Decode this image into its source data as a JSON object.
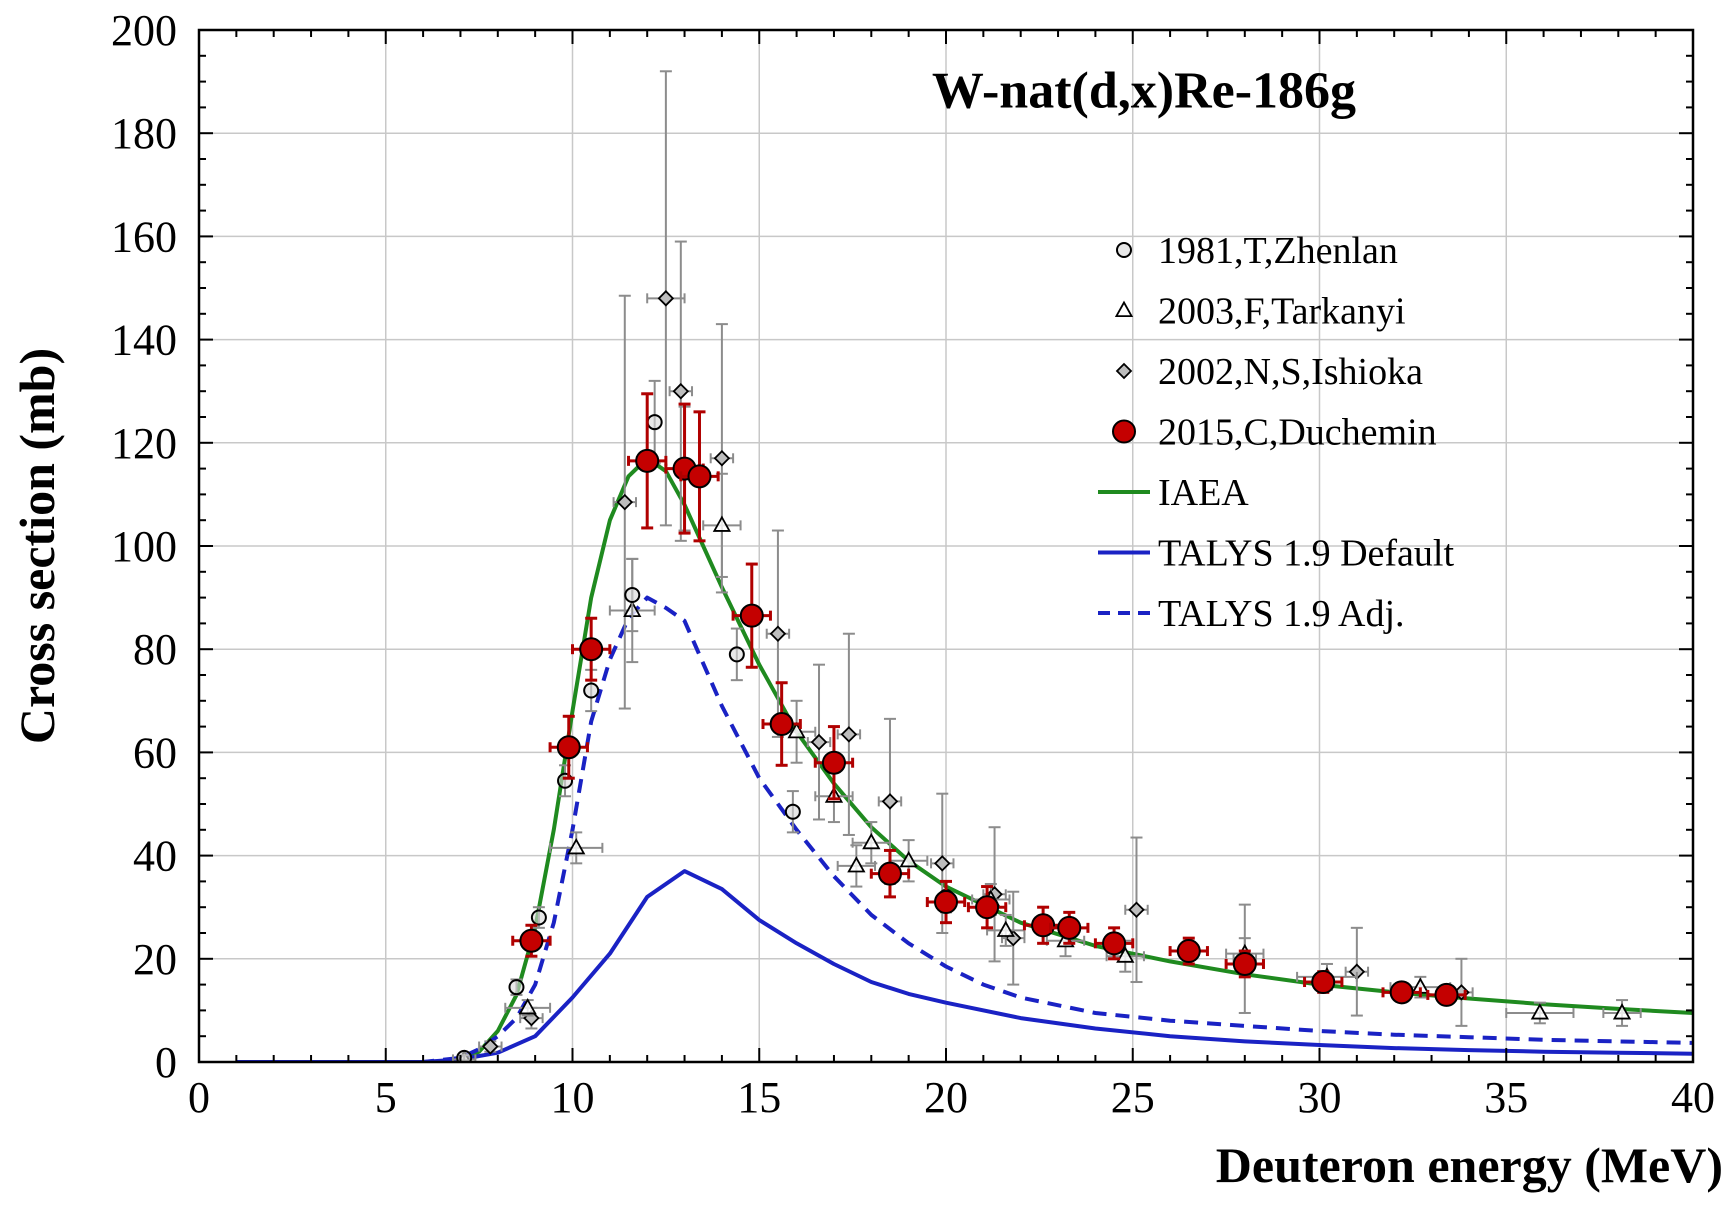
{
  "chart_data": {
    "type": "scatter",
    "title": "W-nat(d,x)Re-186g",
    "xlabel": "Deuteron energy (MeV)",
    "ylabel": "Cross section (mb)",
    "xlim": [
      0,
      40
    ],
    "ylim": [
      0,
      200
    ],
    "xticks": [
      0,
      5,
      10,
      15,
      20,
      25,
      30,
      35,
      40
    ],
    "yticks": [
      0,
      20,
      40,
      60,
      80,
      100,
      120,
      140,
      160,
      180,
      200
    ],
    "grid": true,
    "legend_position": "top-right",
    "series": [
      {
        "name": "1981,T,Zhenlan",
        "kind": "markers",
        "marker": "circle-open",
        "color": "#000000",
        "points": [
          {
            "x": 7.1,
            "y": 0.8,
            "yerr": 0.5,
            "xerr": 0
          },
          {
            "x": 8.5,
            "y": 14.5,
            "yerr": 1.5,
            "xerr": 0
          },
          {
            "x": 9.1,
            "y": 28.0,
            "yerr": 2.0,
            "xerr": 0
          },
          {
            "x": 9.8,
            "y": 54.5,
            "yerr": 3.0,
            "xerr": 0
          },
          {
            "x": 10.5,
            "y": 72.0,
            "yerr": 4.0,
            "xerr": 0
          },
          {
            "x": 11.6,
            "y": 90.5,
            "yerr": 7.0,
            "xerr": 0
          },
          {
            "x": 12.2,
            "y": 124.0,
            "yerr": 8.0,
            "xerr": 0
          },
          {
            "x": 14.4,
            "y": 79.0,
            "yerr": 5.0,
            "xerr": 0
          },
          {
            "x": 15.9,
            "y": 48.5,
            "yerr": 4.0,
            "xerr": 0
          },
          {
            "x": 20.0,
            "y": 32.0,
            "yerr": 3.0,
            "xerr": 0
          }
        ]
      },
      {
        "name": "2003,F,Tarkanyi",
        "kind": "markers",
        "marker": "triangle-open",
        "color": "#000000",
        "points": [
          {
            "x": 7.1,
            "y": 0.5,
            "yerr": 0.3,
            "xerr": 0.3
          },
          {
            "x": 8.8,
            "y": 10.5,
            "yerr": 1.5,
            "xerr": 0.6
          },
          {
            "x": 10.1,
            "y": 41.5,
            "yerr": 3.0,
            "xerr": 0.7
          },
          {
            "x": 11.6,
            "y": 87.5,
            "yerr": 10.0,
            "xerr": 0.6
          },
          {
            "x": 13.0,
            "y": 115.0,
            "yerr": 12.0,
            "xerr": 0.5
          },
          {
            "x": 14.0,
            "y": 104.0,
            "yerr": 10.0,
            "xerr": 0.5
          },
          {
            "x": 16.0,
            "y": 64.0,
            "yerr": 6.0,
            "xerr": 0.5
          },
          {
            "x": 17.0,
            "y": 51.5,
            "yerr": 5.0,
            "xerr": 0.5
          },
          {
            "x": 17.6,
            "y": 38.0,
            "yerr": 4.0,
            "xerr": 0.5
          },
          {
            "x": 18.0,
            "y": 42.5,
            "yerr": 4.0,
            "xerr": 0.5
          },
          {
            "x": 19.0,
            "y": 39.0,
            "yerr": 4.0,
            "xerr": 0.5
          },
          {
            "x": 21.2,
            "y": 31.5,
            "yerr": 3.0,
            "xerr": 0.5
          },
          {
            "x": 21.6,
            "y": 25.5,
            "yerr": 3.0,
            "xerr": 0.5
          },
          {
            "x": 23.2,
            "y": 23.5,
            "yerr": 3.0,
            "xerr": 0.5
          },
          {
            "x": 24.8,
            "y": 20.5,
            "yerr": 3.0,
            "xerr": 0.5
          },
          {
            "x": 28.0,
            "y": 21.0,
            "yerr": 3.0,
            "xerr": 0.5
          },
          {
            "x": 30.2,
            "y": 16.5,
            "yerr": 2.5,
            "xerr": 0.8
          },
          {
            "x": 32.7,
            "y": 14.5,
            "yerr": 2.0,
            "xerr": 0.8
          },
          {
            "x": 35.9,
            "y": 9.5,
            "yerr": 2.0,
            "xerr": 0.9
          },
          {
            "x": 38.1,
            "y": 9.5,
            "yerr": 2.5,
            "xerr": 0.5
          }
        ]
      },
      {
        "name": "2002,N,S,Ishioka",
        "kind": "markers",
        "marker": "diamond-open",
        "color": "#000000",
        "points": [
          {
            "x": 7.8,
            "y": 3.0,
            "yerr": 1.0,
            "xerr": 0.3
          },
          {
            "x": 8.9,
            "y": 8.5,
            "yerr": 2.0,
            "xerr": 0.3
          },
          {
            "x": 11.4,
            "y": 108.5,
            "yerr": 40.0,
            "xerr": 0.3
          },
          {
            "x": 12.5,
            "y": 148.0,
            "yerr": 44.0,
            "xerr": 0.5
          },
          {
            "x": 12.9,
            "y": 130.0,
            "yerr": 29.0,
            "xerr": 0.3
          },
          {
            "x": 14.0,
            "y": 117.0,
            "yerr": 26.0,
            "xerr": 0.3
          },
          {
            "x": 15.5,
            "y": 83.0,
            "yerr": 20.0,
            "xerr": 0.3
          },
          {
            "x": 16.6,
            "y": 62.0,
            "yerr": 15.0,
            "xerr": 0.3
          },
          {
            "x": 17.4,
            "y": 63.5,
            "yerr": 19.5,
            "xerr": 0.3
          },
          {
            "x": 18.5,
            "y": 50.5,
            "yerr": 16.0,
            "xerr": 0.3
          },
          {
            "x": 19.9,
            "y": 38.5,
            "yerr": 13.5,
            "xerr": 0.3
          },
          {
            "x": 21.3,
            "y": 32.5,
            "yerr": 13.0,
            "xerr": 0.3
          },
          {
            "x": 21.8,
            "y": 24.0,
            "yerr": 9.0,
            "xerr": 0.3
          },
          {
            "x": 25.1,
            "y": 29.5,
            "yerr": 14.0,
            "xerr": 0.3
          },
          {
            "x": 28.0,
            "y": 20.0,
            "yerr": 10.5,
            "xerr": 0.3
          },
          {
            "x": 31.0,
            "y": 17.5,
            "yerr": 8.5,
            "xerr": 0.3
          },
          {
            "x": 33.8,
            "y": 13.5,
            "yerr": 6.5,
            "xerr": 0.3
          }
        ]
      },
      {
        "name": "2015,C,Duchemin",
        "kind": "markers",
        "marker": "circle-filled",
        "color": "#c00000",
        "points": [
          {
            "x": 8.9,
            "y": 23.5,
            "yerr": 3.0,
            "xerr": 0.5
          },
          {
            "x": 9.9,
            "y": 61.0,
            "yerr": 6.0,
            "xerr": 0.5
          },
          {
            "x": 10.5,
            "y": 80.0,
            "yerr": 6.0,
            "xerr": 0.5
          },
          {
            "x": 12.0,
            "y": 116.5,
            "yerr": 13.0,
            "xerr": 0.5
          },
          {
            "x": 13.0,
            "y": 115.0,
            "yerr": 12.5,
            "xerr": 0.5
          },
          {
            "x": 13.4,
            "y": 113.5,
            "yerr": 12.5,
            "xerr": 0.5
          },
          {
            "x": 14.8,
            "y": 86.5,
            "yerr": 10.0,
            "xerr": 0.5
          },
          {
            "x": 15.6,
            "y": 65.5,
            "yerr": 8.0,
            "xerr": 0.5
          },
          {
            "x": 17.0,
            "y": 58.0,
            "yerr": 7.0,
            "xerr": 0.5
          },
          {
            "x": 18.5,
            "y": 36.5,
            "yerr": 4.5,
            "xerr": 0.5
          },
          {
            "x": 20.0,
            "y": 31.0,
            "yerr": 4.0,
            "xerr": 0.5
          },
          {
            "x": 21.1,
            "y": 30.0,
            "yerr": 4.0,
            "xerr": 0.5
          },
          {
            "x": 22.6,
            "y": 26.5,
            "yerr": 3.5,
            "xerr": 0.5
          },
          {
            "x": 23.3,
            "y": 26.0,
            "yerr": 3.0,
            "xerr": 0.5
          },
          {
            "x": 24.5,
            "y": 23.0,
            "yerr": 3.0,
            "xerr": 0.5
          },
          {
            "x": 26.5,
            "y": 21.5,
            "yerr": 2.5,
            "xerr": 0.5
          },
          {
            "x": 28.0,
            "y": 19.0,
            "yerr": 2.5,
            "xerr": 0.5
          },
          {
            "x": 30.1,
            "y": 15.5,
            "yerr": 2.0,
            "xerr": 0.5
          },
          {
            "x": 32.2,
            "y": 13.5,
            "yerr": 1.5,
            "xerr": 0.5
          },
          {
            "x": 33.4,
            "y": 13.0,
            "yerr": 1.5,
            "xerr": 0.5
          }
        ]
      },
      {
        "name": "IAEA",
        "kind": "line",
        "style": "solid",
        "color": "#1f8a1f",
        "x": [
          7.0,
          7.5,
          8.0,
          8.5,
          9.0,
          9.5,
          10.0,
          10.5,
          11.0,
          11.5,
          12.0,
          12.5,
          13.0,
          13.5,
          14.0,
          15.0,
          16.0,
          17.0,
          18.0,
          19.0,
          20.0,
          22.0,
          24.0,
          26.0,
          28.0,
          30.0,
          32.0,
          34.0,
          36.0,
          38.0,
          40.0
        ],
        "y": [
          0.3,
          2.0,
          6.0,
          13.0,
          26.0,
          45.0,
          68.0,
          90.0,
          105.0,
          113.5,
          117.0,
          114.5,
          108.0,
          100.0,
          92.0,
          77.0,
          64.0,
          54.0,
          45.5,
          39.0,
          34.0,
          27.0,
          22.5,
          19.5,
          17.0,
          15.0,
          13.5,
          12.3,
          11.2,
          10.3,
          9.5
        ]
      },
      {
        "name": "TALYS 1.9 Default",
        "kind": "line",
        "style": "solid",
        "color": "#1a22c4",
        "x": [
          1.0,
          6.0,
          7.0,
          8.0,
          9.0,
          10.0,
          11.0,
          12.0,
          13.0,
          14.0,
          15.0,
          16.0,
          17.0,
          18.0,
          19.0,
          20.0,
          22.0,
          24.0,
          26.0,
          28.0,
          30.0,
          32.0,
          34.0,
          36.0,
          38.0,
          40.0
        ],
        "y": [
          0.0,
          0.0,
          0.5,
          1.8,
          5.0,
          12.5,
          21.0,
          32.0,
          37.0,
          33.5,
          27.5,
          23.0,
          19.0,
          15.5,
          13.2,
          11.5,
          8.5,
          6.5,
          5.0,
          4.0,
          3.3,
          2.7,
          2.3,
          2.0,
          1.8,
          1.6
        ]
      },
      {
        "name": "TALYS 1.9 Adj.",
        "kind": "line",
        "style": "dashed",
        "color": "#1a22c4",
        "x": [
          1.0,
          6.0,
          7.0,
          7.5,
          8.0,
          8.5,
          9.0,
          9.5,
          10.0,
          10.5,
          11.0,
          11.5,
          12.0,
          12.5,
          13.0,
          14.0,
          15.0,
          16.0,
          17.0,
          18.0,
          19.0,
          20.0,
          21.0,
          22.0,
          24.0,
          26.0,
          28.0,
          30.0,
          32.0,
          34.0,
          36.0,
          38.0,
          40.0
        ],
        "y": [
          0.0,
          0.0,
          0.8,
          2.5,
          5.0,
          8.5,
          15.0,
          27.0,
          45.0,
          66.0,
          78.0,
          86.0,
          90.0,
          88.0,
          85.5,
          69.0,
          55.0,
          45.0,
          36.0,
          28.5,
          23.0,
          18.5,
          15.0,
          12.5,
          9.5,
          8.0,
          7.0,
          6.0,
          5.3,
          4.8,
          4.3,
          4.0,
          3.7
        ]
      }
    ]
  }
}
